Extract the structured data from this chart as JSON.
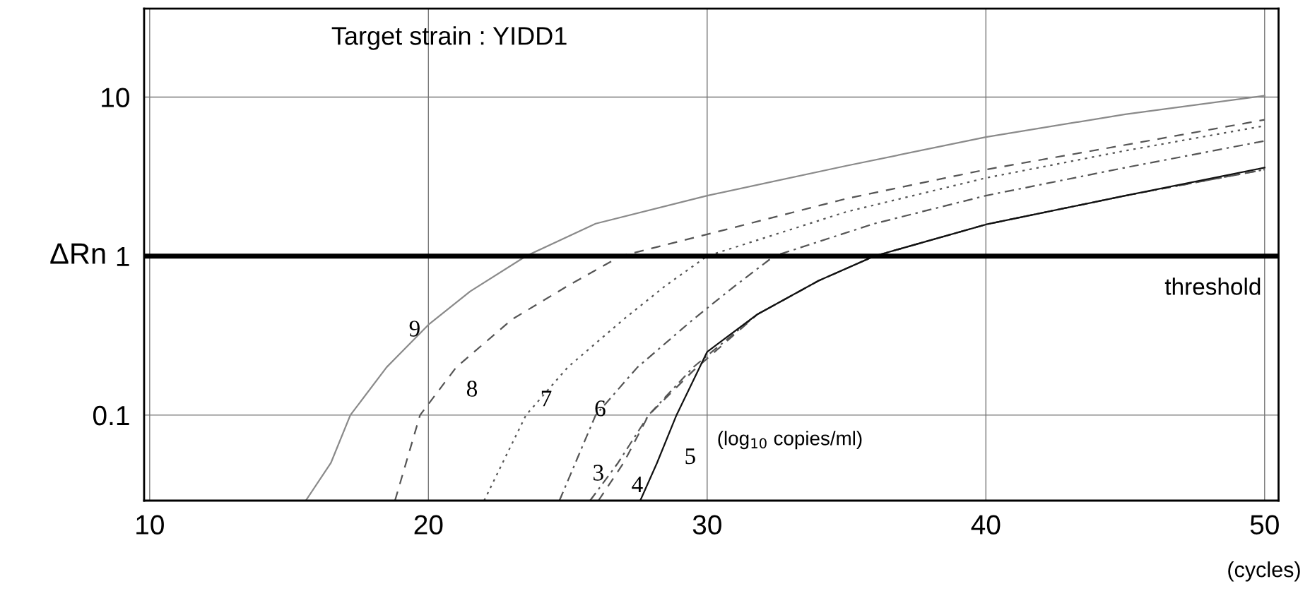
{
  "chart_data": {
    "type": "line",
    "title": "Target strain : YIDD1",
    "xlabel": "(cycles)",
    "ylabel": "ΔRn",
    "log": "y",
    "xlim": [
      9.8,
      50.5
    ],
    "ylim": [
      0.029,
      36
    ],
    "xticks": [
      10,
      20,
      30,
      40,
      50
    ],
    "yticks": [
      0.1,
      1,
      10
    ],
    "grid": true,
    "marker": "none",
    "series": [
      {
        "color": "#8a8a8a",
        "line_style": "solid",
        "x": [
          15.6,
          16.5,
          17.2,
          18.5,
          20,
          21.5,
          23.5,
          26,
          30,
          35,
          40,
          45,
          50
        ],
        "values": [
          0.029,
          0.05,
          0.1,
          0.2,
          0.37,
          0.6,
          1,
          1.6,
          2.4,
          3.7,
          5.6,
          7.8,
          10.2
        ]
      },
      {
        "color": "#555555",
        "line_style": "dashed",
        "x": [
          18.8,
          19.7,
          21,
          23,
          25,
          26.9,
          30,
          35,
          40,
          45,
          50
        ],
        "values": [
          0.029,
          0.1,
          0.2,
          0.4,
          0.65,
          1,
          1.37,
          2.3,
          3.5,
          5,
          7.2
        ]
      },
      {
        "color": "#555555",
        "line_style": "dotted",
        "x": [
          22,
          23.5,
          25,
          27,
          28.5,
          30,
          35,
          40,
          45,
          50
        ],
        "values": [
          0.029,
          0.1,
          0.2,
          0.4,
          0.65,
          1,
          1.9,
          3.1,
          4.6,
          6.6
        ]
      },
      {
        "color": "#555555",
        "line_style": "dashdot",
        "x": [
          24.7,
          26,
          27.5,
          29.5,
          31,
          32.4,
          36,
          40,
          45,
          50
        ],
        "values": [
          0.029,
          0.1,
          0.2,
          0.4,
          0.65,
          1,
          1.6,
          2.4,
          3.6,
          5.3
        ]
      },
      {
        "color": "#555555",
        "line_style": "dashdot",
        "x": [
          25.8,
          26.8,
          27.9,
          29.5,
          31.8,
          34,
          36,
          40,
          45,
          50
        ],
        "values": [
          0.029,
          0.05,
          0.1,
          0.2,
          0.43,
          0.7,
          1,
          1.58,
          2.4,
          3.5
        ]
      },
      {
        "color": "#555555",
        "line_style": "dashed",
        "x": [
          26.1,
          27,
          27.9,
          29.5,
          31.8,
          34,
          36,
          40,
          45,
          50
        ],
        "values": [
          0.029,
          0.05,
          0.1,
          0.19,
          0.43,
          0.7,
          1,
          1.58,
          2.4,
          3.5
        ]
      },
      {
        "color": "#111111",
        "line_style": "solid",
        "x": [
          27.6,
          28.2,
          28.9,
          30,
          31.8,
          34,
          36,
          40,
          45,
          50
        ],
        "values": [
          0.029,
          0.05,
          0.1,
          0.25,
          0.43,
          0.7,
          1,
          1.58,
          2.4,
          3.6
        ]
      }
    ],
    "ref_lines": [
      {
        "axis": "y",
        "value": 1,
        "label": "threshold",
        "color": "#000000"
      }
    ],
    "annotations": [
      {
        "text": "9",
        "x": 20,
        "y": 0.37
      },
      {
        "text": "8",
        "x": 21,
        "y": 0.2
      },
      {
        "text": "7",
        "x": 25,
        "y": 0.2
      },
      {
        "text": "6",
        "x": 27.5,
        "y": 0.2
      },
      {
        "text": "3",
        "x": 26.8,
        "y": 0.05
      },
      {
        "text": "4",
        "x": 27,
        "y": 0.05
      },
      {
        "text": "5",
        "x": 28.9,
        "y": 0.1
      },
      "(log$_{10}$ copies/ml)"
    ]
  }
}
